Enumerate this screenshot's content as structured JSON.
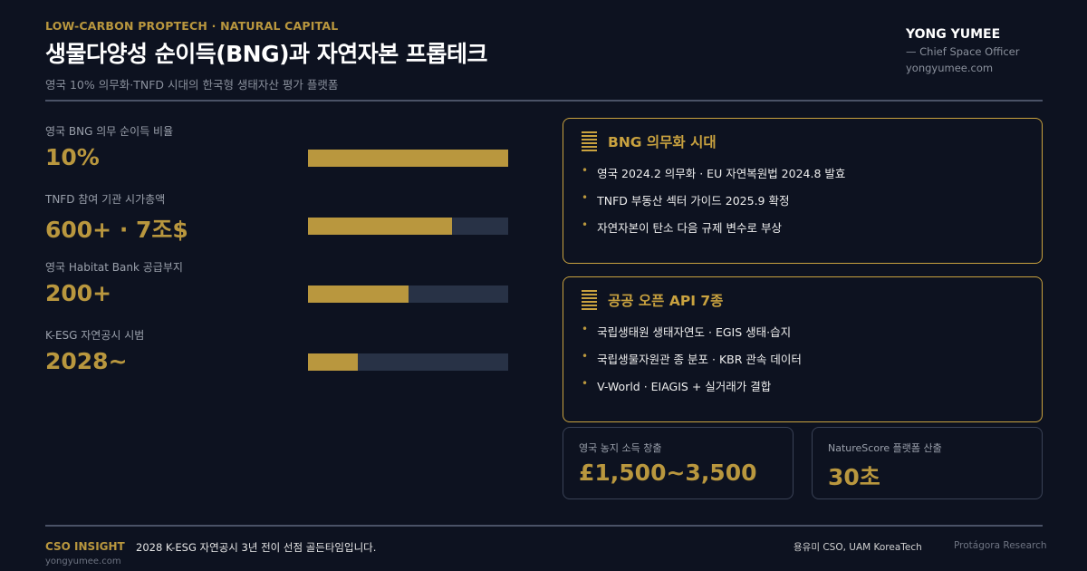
{
  "header": {
    "eyebrow": "LOW-CARBON PROPTECH · NATURAL CAPITAL",
    "title": "생물다양성 순이득(BNG)과 자연자본 프롭테크",
    "subtitle": "영국 10% 의무화·TNFD 시대의 한국형 생태자산 평가 플랫폼"
  },
  "author": {
    "name": "YONG YUMEE",
    "role": "— Chief Space Officer",
    "website": "yongyumee.com"
  },
  "metrics": [
    {
      "label": "영국 BNG 의무 순이득 비율",
      "value": "10%",
      "bar_fraction": 1.0
    },
    {
      "label": "TNFD 참여 기관 시가총액",
      "value": "600+ · 7조$",
      "bar_fraction": 0.72
    },
    {
      "label": "영국 Habitat Bank 공급부지",
      "value": "200+",
      "bar_fraction": 0.5
    },
    {
      "label": "K-ESG 자연공시 시범",
      "value": "2028~",
      "bar_fraction": 0.25
    }
  ],
  "cards": [
    {
      "title": "BNG 의무화 시대",
      "icon": "lines-icon",
      "items": [
        "영국 2024.2 의무화 · EU 자연복원법 2024.8 발효",
        "TNFD 부동산 섹터 가이드 2025.9 확정",
        "자연자본이 탄소 다음 규제 변수로 부상"
      ]
    },
    {
      "title": "공공 오픈 API 7종",
      "icon": "lines-icon",
      "items": [
        "국립생태원 생태자연도 · EGIS 생태·습지",
        "국립생물자원관 종 분포 · KBR 관속 데이터",
        "V-World · EIAGIS + 실거래가 결합"
      ]
    }
  ],
  "stats": [
    {
      "label": "영국 농지 소득 창출",
      "value": "£1,500~3,500"
    },
    {
      "label": "NatureScore 플랫폼 산출",
      "value": "30초"
    }
  ],
  "footer": {
    "brand": "CSO INSIGHT",
    "website": "yongyumee.com",
    "message": "2028 K-ESG 자연공시 3년 전이 선점 골든타임입니다.",
    "credit": "용유미 CSO, UAM KoreaTech",
    "source": "Protágora Research"
  },
  "colors": {
    "accent": "#b9973e",
    "background": "#0d1220",
    "bar_track": "#283246"
  }
}
